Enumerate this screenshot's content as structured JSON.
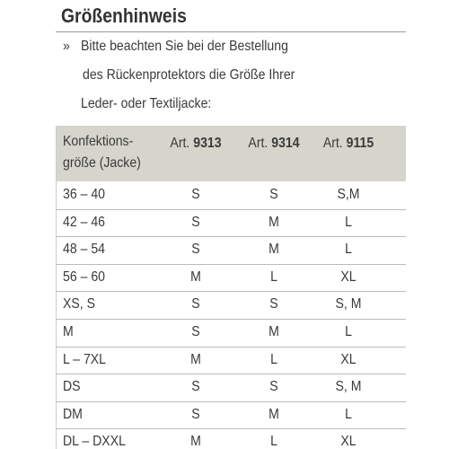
{
  "title": "Größenhinweis",
  "intro": {
    "bullet": "»",
    "lines": [
      "Bitte beachten Sie bei der Bestellung",
      "des Rückenprotektors die Größe Ihrer",
      "Leder- oder Textiljacke:"
    ]
  },
  "table": {
    "header": {
      "size": [
        "Konfektions-",
        "größe (Jacke)"
      ],
      "articles": [
        {
          "prefix": "Art.",
          "number": "9313"
        },
        {
          "prefix": "Art.",
          "number": "9314"
        },
        {
          "prefix": "Art.",
          "number": "9115"
        }
      ]
    },
    "rows": [
      [
        "36 – 40",
        "S",
        "S",
        "S,M"
      ],
      [
        "42 – 46",
        "S",
        "M",
        "L"
      ],
      [
        "48 – 54",
        "S",
        "M",
        "L"
      ],
      [
        "56 – 60",
        "M",
        "L",
        "XL"
      ],
      [
        "XS, S",
        "S",
        "S",
        "S, M"
      ],
      [
        "M",
        "S",
        "M",
        "L"
      ],
      [
        "L – 7XL",
        "M",
        "L",
        "XL"
      ],
      [
        "DS",
        "S",
        "S",
        "S, M"
      ],
      [
        "DM",
        "S",
        "M",
        "L"
      ],
      [
        "DL – DXXL",
        "M",
        "L",
        "XL"
      ]
    ]
  }
}
